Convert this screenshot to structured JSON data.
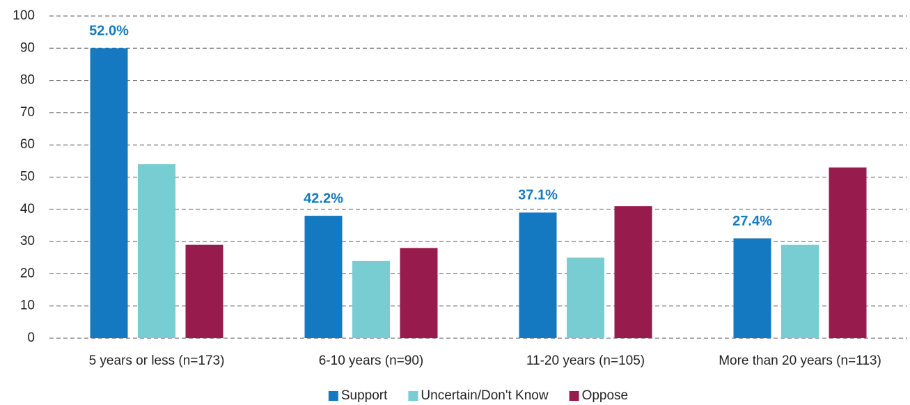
{
  "chart_data": {
    "type": "bar",
    "categories": [
      "5 years or less (n=173)",
      "6-10 years (n=90)",
      "11-20 years (n=105)",
      "More than 20 years (n=113)"
    ],
    "series": [
      {
        "name": "Support",
        "color": "#1479c0",
        "values": [
          90,
          38,
          39,
          31
        ]
      },
      {
        "name": "Uncertain/Don't Know",
        "color": "#78cdd3",
        "values": [
          54,
          24,
          25,
          29
        ]
      },
      {
        "name": "Oppose",
        "color": "#971b4c",
        "values": [
          29,
          28,
          41,
          53
        ]
      }
    ],
    "annotations": [
      "52.0%",
      "42.2%",
      "37.1%",
      "27.4%"
    ],
    "annotation_color": "#1479c0",
    "ylim": [
      0,
      100
    ],
    "yticks": [
      0,
      10,
      20,
      30,
      40,
      50,
      60,
      70,
      80,
      90,
      100
    ],
    "grid": true,
    "legend": "bottom"
  }
}
